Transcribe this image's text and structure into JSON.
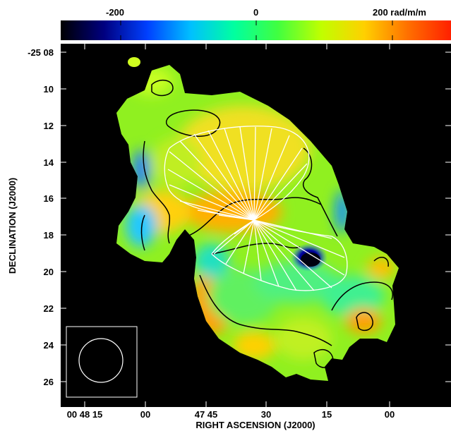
{
  "colorbar": {
    "labels": [
      "-200",
      "0",
      "200 rad/m/m"
    ],
    "values": [
      -200,
      0,
      200
    ],
    "range": [
      -300,
      300
    ],
    "colors": [
      "#000000",
      "#000080",
      "#0040ff",
      "#00c0ff",
      "#00ffa0",
      "#40ff40",
      "#c0ff00",
      "#ffd000",
      "#ff7000",
      "#ff2000"
    ]
  },
  "axes": {
    "xlabel": "RIGHT ASCENSION (J2000)",
    "ylabel": "DECLINATION (J2000)",
    "x_ticks": [
      "00 48 15",
      "00",
      "47 45",
      "30",
      "15",
      "00"
    ],
    "y_ticks": [
      "-25 08",
      "10",
      "12",
      "14",
      "16",
      "18",
      "20",
      "22",
      "24",
      "26"
    ]
  },
  "map": {
    "background": "#000000",
    "contour_color": "#000000",
    "vector_color": "#ffffff",
    "beam_shape": "circle"
  }
}
